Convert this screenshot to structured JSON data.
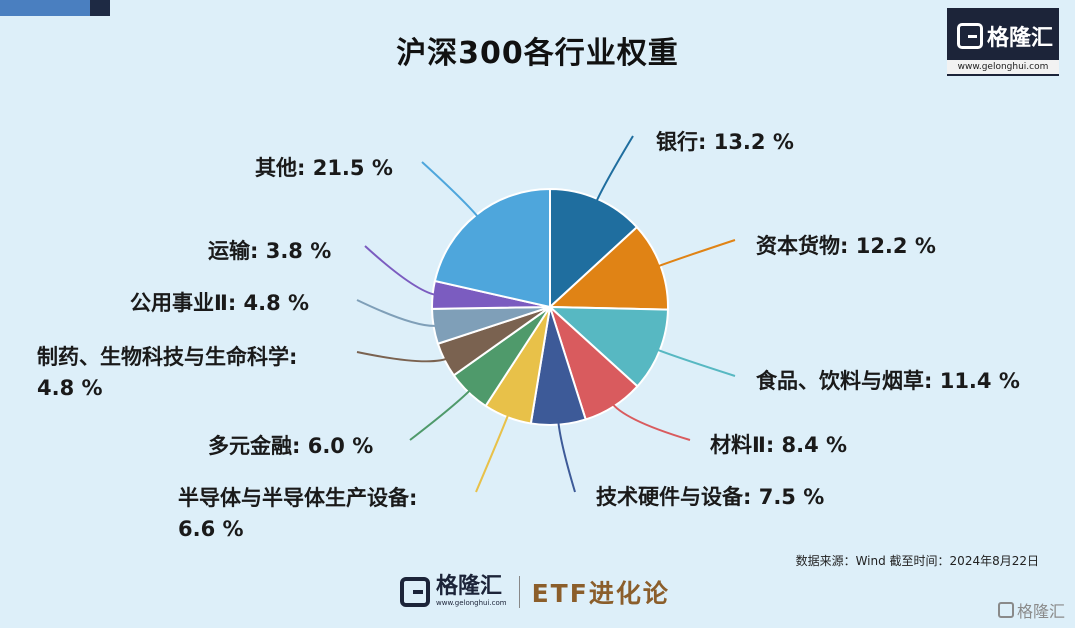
{
  "header": {
    "title": "沪深300各行业权重"
  },
  "logo": {
    "brand": "格隆汇",
    "url": "www.gelonghui.com"
  },
  "chart_data": {
    "type": "pie",
    "title": "沪深300各行业权重",
    "unit": "%",
    "slices": [
      {
        "label": "银行",
        "value": 13.2,
        "text": "银行: 13.2 %",
        "color": "#1f6e9f"
      },
      {
        "label": "资本货物",
        "value": 12.2,
        "text": "资本货物: 12.2 %",
        "color": "#e08315"
      },
      {
        "label": "食品、饮料与烟草",
        "value": 11.4,
        "text": "食品、饮料与烟草: 11.4 %",
        "color": "#57b8c2"
      },
      {
        "label": "材料II",
        "value": 8.4,
        "text": "材料Ⅱ: 8.4 %",
        "color": "#d95b5e"
      },
      {
        "label": "技术硬件与设备",
        "value": 7.5,
        "text": "技术硬件与设备: 7.5 %",
        "color": "#3d5a98"
      },
      {
        "label": "半导体与半导体生产设备",
        "value": 6.6,
        "text": "半导体与半导体生产设备:",
        "text2": "6.6 %",
        "color": "#e8c149"
      },
      {
        "label": "多元金融",
        "value": 6.0,
        "text": "多元金融: 6.0 %",
        "color": "#4f9a6b"
      },
      {
        "label": "制药、生物科技与生命科学",
        "value": 4.8,
        "text": "制药、生物科技与生命科学:",
        "text2": "4.8 %",
        "color": "#7a6250"
      },
      {
        "label": "公用事业II",
        "value": 4.8,
        "text": "公用事业Ⅱ: 4.8 %",
        "color": "#7f9fb8"
      },
      {
        "label": "运输",
        "value": 3.8,
        "text": "运输: 3.8 %",
        "color": "#7b5cc0"
      },
      {
        "label": "其他",
        "value": 21.5,
        "text": "其他: 21.5 %",
        "color": "#4ea6dc"
      }
    ],
    "legend": "none"
  },
  "footer": {
    "source": "数据来源：Wind 截至时间：2024年8月22日",
    "brand": "格隆汇",
    "brand_url": "www.gelonghui.com",
    "column": "ETF进化论",
    "watermark": "格隆汇"
  }
}
